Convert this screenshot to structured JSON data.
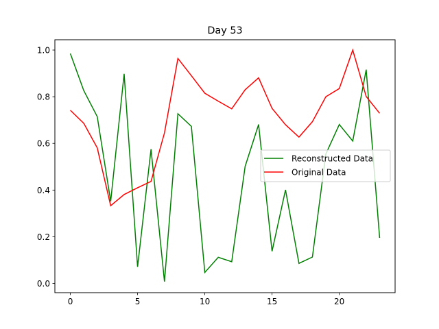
{
  "chart_data": {
    "type": "line",
    "title": "Day 53",
    "xlabel": "",
    "ylabel": "",
    "xlim": [
      -1.15,
      24.15
    ],
    "ylim": [
      -0.0396,
      1.0441
    ],
    "xticks": [
      0,
      5,
      10,
      15,
      20
    ],
    "yticks": [
      0.0,
      0.2,
      0.4,
      0.6,
      0.8,
      1.0
    ],
    "xtick_labels": [
      "0",
      "5",
      "10",
      "15",
      "20"
    ],
    "ytick_labels": [
      "0.0",
      "0.2",
      "0.4",
      "0.6",
      "0.8",
      "1.0"
    ],
    "grid": false,
    "legend_position": "center-right",
    "x": [
      0,
      1,
      2,
      3,
      4,
      5,
      6,
      7,
      8,
      9,
      10,
      11,
      12,
      13,
      14,
      15,
      16,
      17,
      18,
      19,
      20,
      21,
      22,
      23
    ],
    "series": [
      {
        "name": "Reconstructed Data",
        "color": "#008000",
        "values": [
          0.985,
          0.826,
          0.715,
          0.352,
          0.898,
          0.071,
          0.575,
          0.008,
          0.727,
          0.673,
          0.047,
          0.112,
          0.093,
          0.502,
          0.681,
          0.138,
          0.401,
          0.086,
          0.113,
          0.555,
          0.681,
          0.61,
          0.916,
          0.195
        ]
      },
      {
        "name": "Original Data",
        "color": "#ff0000",
        "values": [
          0.742,
          0.686,
          0.581,
          0.333,
          0.381,
          0.41,
          0.437,
          0.645,
          0.964,
          0.89,
          0.815,
          0.781,
          0.748,
          0.83,
          0.881,
          0.75,
          0.68,
          0.627,
          0.693,
          0.8,
          0.835,
          1.0,
          0.801,
          0.729
        ]
      }
    ]
  }
}
